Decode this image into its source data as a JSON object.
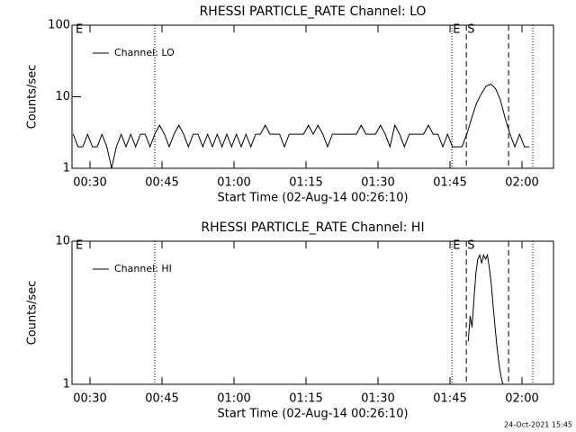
{
  "chart_data": [
    {
      "type": "line",
      "title": "RHESSI PARTICLE_RATE Channel: LO",
      "xlabel": "Start Time (02-Aug-14 00:26:10)",
      "ylabel": "Counts/sec",
      "log_y": true,
      "legend": "upper left",
      "xlim": [
        26.25,
        126.56
      ],
      "ylim": [
        1,
        100
      ],
      "yticks": [
        1,
        10,
        100
      ],
      "xticks": [
        {
          "value": 30,
          "label": "00:30"
        },
        {
          "value": 45,
          "label": "00:45"
        },
        {
          "value": 60,
          "label": "01:00"
        },
        {
          "value": 75,
          "label": "01:15"
        },
        {
          "value": 90,
          "label": "01:30"
        },
        {
          "value": 105,
          "label": "01:45"
        },
        {
          "value": 120,
          "label": "02:00"
        }
      ],
      "vlines": [
        {
          "x": 43.5,
          "style": "dotted"
        },
        {
          "x": 105.4,
          "style": "dotted"
        },
        {
          "x": 108.4,
          "style": "dashed"
        },
        {
          "x": 117.2,
          "style": "dashed"
        },
        {
          "x": 122.25,
          "style": "dotted"
        }
      ],
      "annotations": [
        {
          "text": "E",
          "x": 27
        },
        {
          "text": "E",
          "x": 105.6
        },
        {
          "text": "S",
          "x": 108.6
        }
      ],
      "x": [
        26.5,
        27.5,
        28.5,
        29.5,
        30.5,
        31.5,
        32.5,
        33.5,
        34.5,
        35.5,
        36.5,
        37.5,
        38.5,
        39.5,
        40.5,
        41.5,
        42.5,
        43.5,
        44.5,
        45.5,
        46.5,
        47.5,
        48.5,
        49.5,
        50.5,
        51.5,
        52.5,
        53.5,
        54.5,
        55.5,
        56.5,
        57.5,
        58.5,
        59.5,
        60.5,
        61.5,
        62.5,
        63.5,
        64.5,
        65.5,
        66.5,
        67.5,
        68.5,
        69.5,
        70.5,
        71.5,
        72.5,
        73.5,
        74.5,
        75.5,
        76.5,
        77.5,
        78.5,
        79.5,
        80.5,
        81.5,
        82.5,
        83.5,
        84.5,
        85.5,
        86.5,
        87.5,
        88.5,
        89.5,
        90.5,
        91.5,
        92.5,
        93.5,
        94.5,
        95.5,
        96.5,
        97.5,
        98.5,
        99.5,
        100.5,
        101.5,
        102.5,
        103.5,
        104.5,
        105.5,
        106.5,
        107.5,
        108.5,
        109.5,
        110.5,
        111.5,
        112.5,
        113.5,
        114.5,
        115.5,
        116.5,
        117.5,
        118.5,
        119.5,
        120.5,
        121.5
      ],
      "series": [
        {
          "name": "Channel: LO",
          "color": "#000000",
          "values": [
            3,
            2,
            2,
            3,
            2,
            2,
            3,
            2,
            1,
            2,
            3,
            2,
            3,
            2,
            3,
            3,
            2,
            3,
            4,
            3,
            2,
            3,
            4,
            3,
            2,
            3,
            3,
            2,
            3,
            2,
            3,
            2,
            3,
            2,
            3,
            2,
            3,
            2,
            3,
            3,
            4,
            3,
            3,
            3,
            2,
            3,
            3,
            3,
            3,
            4,
            3,
            4,
            3,
            2,
            3,
            3,
            3,
            3,
            3,
            3,
            4,
            3,
            3,
            3,
            4,
            3,
            2,
            4,
            3,
            2,
            3,
            3,
            3,
            3,
            4,
            3,
            3,
            2,
            3,
            2,
            2,
            2,
            3,
            5,
            8,
            11,
            14,
            15,
            13,
            9,
            5,
            3,
            2,
            3,
            2,
            2
          ]
        }
      ]
    },
    {
      "type": "line",
      "title": "RHESSI PARTICLE_RATE Channel: HI",
      "xlabel": "Start Time (02-Aug-14 00:26:10)",
      "ylabel": "Counts/sec",
      "log_y": true,
      "legend": "upper left",
      "xlim": [
        26.25,
        126.56
      ],
      "ylim": [
        1,
        10
      ],
      "yticks": [
        1,
        10
      ],
      "xticks": [
        {
          "value": 30,
          "label": "00:30"
        },
        {
          "value": 45,
          "label": "00:45"
        },
        {
          "value": 60,
          "label": "01:00"
        },
        {
          "value": 75,
          "label": "01:15"
        },
        {
          "value": 90,
          "label": "01:30"
        },
        {
          "value": 105,
          "label": "01:45"
        },
        {
          "value": 120,
          "label": "02:00"
        }
      ],
      "vlines": [
        {
          "x": 43.5,
          "style": "dotted"
        },
        {
          "x": 105.4,
          "style": "dotted"
        },
        {
          "x": 108.4,
          "style": "dashed"
        },
        {
          "x": 117.2,
          "style": "dashed"
        },
        {
          "x": 122.25,
          "style": "dotted"
        }
      ],
      "annotations": [
        {
          "text": "E",
          "x": 27
        },
        {
          "text": "E",
          "x": 105.6
        },
        {
          "text": "S",
          "x": 108.6
        }
      ],
      "x": [
        108.8,
        109.2,
        109.6,
        110.0,
        110.4,
        110.8,
        111.2,
        111.6,
        112.0,
        112.4,
        112.8,
        113.2,
        113.6,
        114.0,
        114.4,
        114.8,
        115.2,
        115.6,
        116.0
      ],
      "series": [
        {
          "name": "Channel: HI",
          "color": "#000000",
          "values": [
            2,
            3,
            2.5,
            4,
            6,
            7.5,
            8,
            7,
            8,
            7.5,
            8,
            6.5,
            5,
            3.5,
            2.5,
            1.8,
            1.4,
            1.15,
            1
          ]
        }
      ]
    }
  ],
  "footer": "24-Oct-2021 15:45"
}
